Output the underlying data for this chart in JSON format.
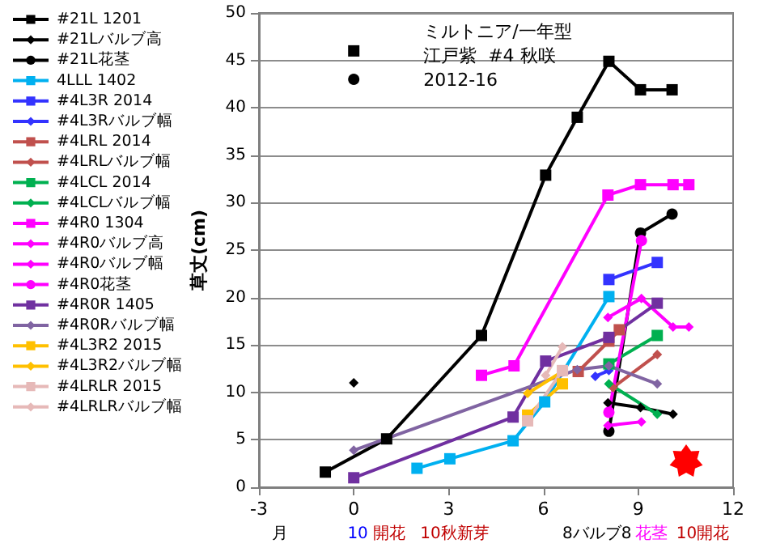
{
  "chart_data": {
    "type": "line",
    "title": "ミルトニア/一年型",
    "subtitle": "江戸紫  #4 秋咲",
    "ylabel": "草丈(cm)",
    "annotations": [
      "2012-16",
      "月",
      "10",
      "開花",
      "10秋新芽",
      "8バルブ8",
      "花茎",
      "10開花"
    ],
    "xlim": [
      -3,
      12
    ],
    "xticks": [
      -3,
      0,
      3,
      6,
      9,
      12
    ],
    "ylim": [
      0,
      50
    ],
    "yticks": [
      0,
      5,
      10,
      15,
      20,
      25,
      30,
      35,
      40,
      45,
      50
    ],
    "grid": "y",
    "legend": "left",
    "series": [
      {
        "name": "#21L 1201",
        "color": "#000000",
        "marker": "square",
        "x": [
          0,
          null,
          -0.9,
          1.04,
          4.04,
          6.07,
          7.07,
          8.07,
          9.07,
          10.07
        ],
        "values": [
          46,
          null,
          1.6,
          5.1,
          16.0,
          32.9,
          39.0,
          44.9,
          41.9,
          41.9
        ]
      },
      {
        "name": "#21Lバルブ高",
        "color": "#000000",
        "marker": "diamond",
        "x": [
          0,
          null,
          8.04,
          9.07,
          10.1
        ],
        "values": [
          11,
          null,
          8.9,
          8.4,
          7.7
        ]
      },
      {
        "name": "#21L花茎",
        "color": "#000000",
        "marker": "circle",
        "x": [
          0,
          null,
          8.07,
          9.07,
          10.07
        ],
        "values": [
          43,
          null,
          5.9,
          26.8,
          28.8
        ]
      },
      {
        "name": "4LLL 1402",
        "color": "#00b0f0",
        "marker": "square",
        "x": [
          2.0,
          3.04,
          5.04,
          6.04,
          8.07
        ],
        "values": [
          2.0,
          3.0,
          4.9,
          9.0,
          20.1
        ]
      },
      {
        "name": "#4L3R 2014",
        "color": "#3333ff",
        "marker": "square",
        "x": [
          8.07,
          9.6
        ],
        "values": [
          21.9,
          23.7
        ]
      },
      {
        "name": "#4L3Rバルブ幅",
        "color": "#3333ff",
        "marker": "diamond",
        "x": [
          7.64,
          8.07
        ],
        "values": [
          11.7,
          12.3
        ]
      },
      {
        "name": "#4LRL 2014",
        "color": "#c0504d",
        "marker": "square",
        "x": [
          7.1,
          8.07,
          8.4
        ],
        "values": [
          12.2,
          15.4,
          16.6
        ]
      },
      {
        "name": "#4LRLバルブ幅",
        "color": "#c0504d",
        "marker": "diamond",
        "x": [
          8.2,
          9.6
        ],
        "values": [
          10.5,
          14.0
        ]
      },
      {
        "name": "#4LCL 2014",
        "color": "#00b050",
        "marker": "square",
        "x": [
          8.07,
          9.6
        ],
        "values": [
          13.0,
          16.0
        ]
      },
      {
        "name": "#4LCLバルブ幅",
        "color": "#00b050",
        "marker": "diamond",
        "x": [
          8.07,
          9.6
        ],
        "values": [
          10.9,
          7.7
        ]
      },
      {
        "name": "#4R0 1304",
        "color": "#ff00ff",
        "marker": "square",
        "x": [
          4.04,
          5.07,
          8.04,
          9.07,
          10.1,
          10.6
        ],
        "values": [
          11.8,
          12.8,
          30.8,
          31.9,
          31.9,
          31.9
        ]
      },
      {
        "name": "#4R0バルブ高",
        "color": "#ff00ff",
        "marker": "diamond",
        "x": [
          8.04,
          9.1
        ],
        "values": [
          6.5,
          6.9
        ]
      },
      {
        "name": "#4R0バルブ幅",
        "color": "#ff00ff",
        "marker": "diamond",
        "x": [
          8.04,
          9.1,
          10.1,
          10.6
        ],
        "values": [
          17.9,
          19.9,
          16.9,
          16.9
        ]
      },
      {
        "name": "#4R0花茎",
        "color": "#ff00ff",
        "marker": "circle",
        "x": [
          8.07,
          9.1
        ],
        "values": [
          7.9,
          26.0
        ]
      },
      {
        "name": "#4R0R 1405",
        "color": "#7030a0",
        "marker": "square",
        "x": [
          0,
          5.04,
          6.07,
          8.07,
          9.6
        ],
        "values": [
          1.0,
          7.4,
          13.3,
          15.8,
          19.4
        ]
      },
      {
        "name": "#4R0Rバルブ幅",
        "color": "#8064a2",
        "marker": "diamond",
        "x": [
          0,
          7.07,
          8.07,
          9.6
        ],
        "values": [
          3.9,
          12.4,
          12.8,
          10.9
        ]
      },
      {
        "name": "#4L3R2 2015",
        "color": "#ffc000",
        "marker": "square",
        "x": [
          5.5,
          6.6
        ],
        "values": [
          7.6,
          10.9
        ]
      },
      {
        "name": "#4L3R2バルブ幅",
        "color": "#ffc000",
        "marker": "diamond",
        "x": [
          5.5,
          6.6
        ],
        "values": [
          9.9,
          12.2
        ]
      },
      {
        "name": "#4LRLR 2015",
        "color": "#e6b9b8",
        "marker": "square",
        "x": [
          5.5,
          6.6
        ],
        "values": [
          7.0,
          12.3
        ]
      },
      {
        "name": "#4LRLRバルブ幅",
        "color": "#e6b9b8",
        "marker": "diamond",
        "x": [
          6.07,
          6.6
        ],
        "values": [
          11.8,
          14.8
        ]
      }
    ]
  }
}
